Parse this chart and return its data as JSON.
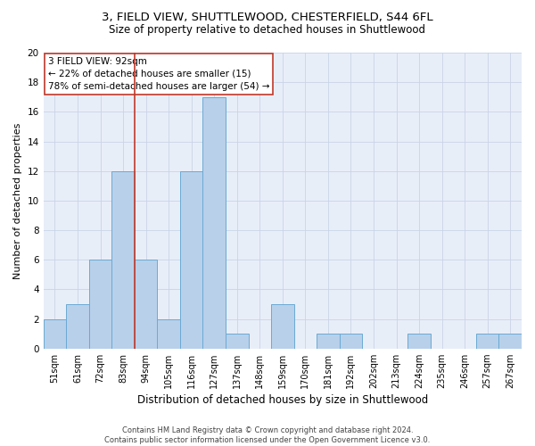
{
  "title_line1": "3, FIELD VIEW, SHUTTLEWOOD, CHESTERFIELD, S44 6FL",
  "title_line2": "Size of property relative to detached houses in Shuttlewood",
  "xlabel": "Distribution of detached houses by size in Shuttlewood",
  "ylabel": "Number of detached properties",
  "footnote": "Contains HM Land Registry data © Crown copyright and database right 2024.\nContains public sector information licensed under the Open Government Licence v3.0.",
  "bar_labels": [
    "51sqm",
    "61sqm",
    "72sqm",
    "83sqm",
    "94sqm",
    "105sqm",
    "116sqm",
    "127sqm",
    "137sqm",
    "148sqm",
    "159sqm",
    "170sqm",
    "181sqm",
    "192sqm",
    "202sqm",
    "213sqm",
    "224sqm",
    "235sqm",
    "246sqm",
    "257sqm",
    "267sqm"
  ],
  "bar_values": [
    2,
    3,
    6,
    12,
    6,
    2,
    12,
    17,
    1,
    0,
    3,
    0,
    1,
    1,
    0,
    0,
    1,
    0,
    0,
    1,
    1
  ],
  "bar_color": "#b8d0ea",
  "bar_edge_color": "#6aaad4",
  "vline_color": "#c0392b",
  "vline_x_idx": 3.5,
  "annotation_text": "3 FIELD VIEW: 92sqm\n← 22% of detached houses are smaller (15)\n78% of semi-detached houses are larger (54) →",
  "annotation_box_color": "white",
  "annotation_box_edge": "#c0392b",
  "ylim": [
    0,
    20
  ],
  "yticks": [
    0,
    2,
    4,
    6,
    8,
    10,
    12,
    14,
    16,
    18,
    20
  ],
  "grid_color": "#c8d4e8",
  "background_color": "#e8eef8",
  "title_fontsize": 9.5,
  "subtitle_fontsize": 8.5,
  "axis_label_fontsize": 8,
  "tick_fontsize": 7,
  "annotation_fontsize": 7.5,
  "footnote_fontsize": 6
}
